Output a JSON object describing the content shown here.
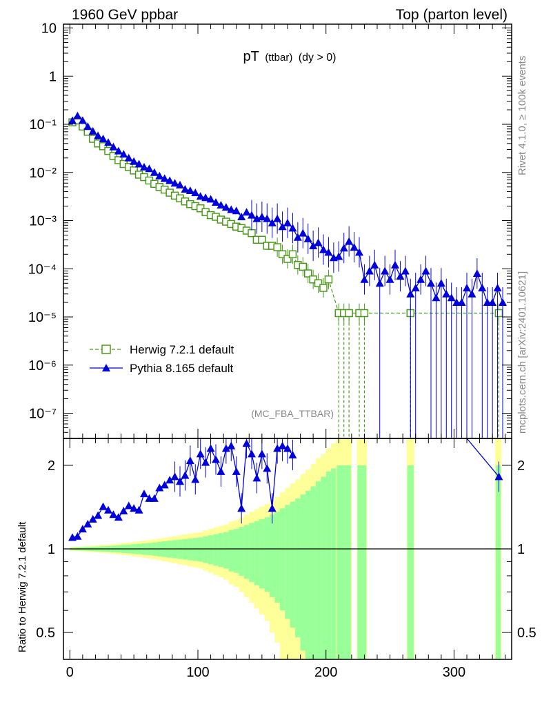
{
  "header": {
    "left": "1960 GeV ppbar",
    "right": "Top (parton level)"
  },
  "side_labels": {
    "rivet": "Rivet 4.1.0, ≥ 100k events",
    "mcplots": "mcplots.cern.ch [arXiv:2401.10621]"
  },
  "colors": {
    "herwig": "#4a9a1a",
    "pythia": "#0000dd",
    "band_inner": "#99ff99",
    "band_outer": "#ffff99",
    "axis": "#000000",
    "analysis_label": "#888888"
  },
  "chart_data": [
    {
      "id": "main",
      "type": "line",
      "title_main": "pT",
      "title_sub": "(ttbar)",
      "title_cut": "(dy > 0)",
      "analysis": "(MC_FBA_TTBAR)",
      "yscale": "log",
      "xlim": [
        -5,
        345
      ],
      "ylim": [
        3e-08,
        12
      ],
      "y_ticks": [
        {
          "value": 10,
          "label": "10"
        },
        {
          "value": 1,
          "label": "1"
        },
        {
          "value": 0.1,
          "label": "10⁻¹"
        },
        {
          "value": 0.01,
          "label": "10⁻²"
        },
        {
          "value": 0.001,
          "label": "10⁻³"
        },
        {
          "value": 0.0001,
          "label": "10⁻⁴"
        },
        {
          "value": 1e-05,
          "label": "10⁻⁵"
        },
        {
          "value": 1e-06,
          "label": "10⁻⁶"
        },
        {
          "value": 1e-07,
          "label": "10⁻⁷"
        }
      ],
      "legend_position": "bottom-left",
      "series": [
        {
          "name": "Herwig 7.2.1 default",
          "marker": "open-square",
          "linestyle": "dashed",
          "x": [
            2,
            6,
            10,
            14,
            18,
            22,
            26,
            30,
            34,
            38,
            42,
            46,
            50,
            54,
            58,
            62,
            66,
            70,
            74,
            78,
            82,
            86,
            90,
            94,
            98,
            102,
            106,
            110,
            114,
            118,
            122,
            126,
            130,
            134,
            138,
            142,
            146,
            150,
            154,
            158,
            162,
            166,
            170,
            174,
            178,
            182,
            186,
            190,
            194,
            198,
            202,
            210,
            214,
            218,
            226,
            230,
            266,
            335
          ],
          "y": [
            0.11,
            0.12,
            0.09,
            0.07,
            0.05,
            0.04,
            0.035,
            0.028,
            0.022,
            0.018,
            0.015,
            0.013,
            0.011,
            0.009,
            0.008,
            0.0068,
            0.0058,
            0.005,
            0.0044,
            0.0038,
            0.0033,
            0.0029,
            0.0025,
            0.0022,
            0.002,
            0.0018,
            0.0015,
            0.0013,
            0.0012,
            0.00105,
            0.00095,
            0.00085,
            0.00075,
            0.0007,
            0.00062,
            0.00055,
            0.0004,
            0.0004,
            0.0003,
            0.0003,
            0.00028,
            0.0002,
            0.00016,
            0.0002,
            0.00012,
            0.00011,
            8e-05,
            6e-05,
            5e-05,
            4e-05,
            6e-05,
            1.2e-05,
            1.2e-05,
            1.2e-05,
            1.2e-05,
            1.2e-05,
            1.2e-05,
            1.2e-05
          ],
          "dashed_to_zero": [
            210,
            214,
            218,
            226,
            230,
            266,
            335
          ]
        },
        {
          "name": "Pythia 8.165 default",
          "marker": "filled-triangle",
          "linestyle": "solid",
          "x": [
            2,
            6,
            10,
            14,
            18,
            22,
            26,
            30,
            34,
            38,
            42,
            46,
            50,
            54,
            58,
            62,
            66,
            70,
            74,
            78,
            82,
            86,
            90,
            94,
            98,
            102,
            106,
            110,
            114,
            118,
            122,
            126,
            130,
            134,
            138,
            142,
            146,
            150,
            154,
            158,
            162,
            166,
            170,
            174,
            178,
            182,
            186,
            190,
            194,
            198,
            202,
            206,
            210,
            214,
            218,
            222,
            226,
            230,
            234,
            238,
            242,
            246,
            250,
            254,
            258,
            262,
            266,
            270,
            274,
            278,
            282,
            286,
            290,
            294,
            298,
            302,
            306,
            310,
            314,
            318,
            322,
            326,
            330,
            334,
            338
          ],
          "y": [
            0.12,
            0.15,
            0.12,
            0.09,
            0.072,
            0.058,
            0.05,
            0.042,
            0.034,
            0.028,
            0.024,
            0.02,
            0.017,
            0.015,
            0.013,
            0.012,
            0.01,
            0.0085,
            0.0075,
            0.0068,
            0.006,
            0.0055,
            0.0045,
            0.0042,
            0.0038,
            0.0032,
            0.003,
            0.0028,
            0.0024,
            0.0021,
            0.0019,
            0.0017,
            0.0016,
            0.0012,
            0.0015,
            0.0013,
            0.0011,
            0.0012,
            0.0011,
            0.0009,
            0.0011,
            0.00075,
            0.0009,
            0.0007,
            0.00045,
            0.00055,
            0.00042,
            0.0003,
            0.00035,
            0.00025,
            0.00022,
            0.00017,
            0.00018,
            0.00027,
            0.00037,
            0.00028,
            0.00022,
            6e-05,
            9e-05,
            0.00012,
            5e-05,
            9e-05,
            6e-05,
            0.00012,
            7e-05,
            9e-05,
            3e-05,
            4e-05,
            6e-05,
            9e-05,
            5e-05,
            2.5e-05,
            5e-05,
            3e-05,
            2.5e-05,
            2e-05,
            2e-05,
            4e-05,
            3e-05,
            8e-05,
            4e-05,
            2e-05,
            2e-05,
            4e-05,
            2e-05
          ]
        }
      ]
    },
    {
      "id": "ratio",
      "type": "line",
      "ylabel": "Ratio to Herwig 7.2.1 default",
      "yscale": "log",
      "xlim": [
        -5,
        345
      ],
      "ylim": [
        0.4,
        2.5
      ],
      "x_ticks": [
        0,
        100,
        200,
        300
      ],
      "y_ticks": [
        {
          "value": 0.5,
          "label": "0.5"
        },
        {
          "value": 1,
          "label": "1"
        },
        {
          "value": 2,
          "label": "2"
        }
      ],
      "reference_line": 1,
      "band": {
        "edges": [
          0,
          4,
          8,
          12,
          16,
          20,
          24,
          28,
          32,
          36,
          40,
          44,
          48,
          52,
          56,
          60,
          64,
          68,
          72,
          76,
          80,
          84,
          88,
          92,
          96,
          100,
          104,
          108,
          112,
          116,
          120,
          124,
          128,
          132,
          136,
          140,
          144,
          148,
          152,
          156,
          160,
          164,
          168,
          172,
          176,
          180,
          184,
          188,
          192,
          196,
          200,
          204,
          208
        ],
        "inner_frac": [
          0.01,
          0.012,
          0.014,
          0.016,
          0.018,
          0.02,
          0.022,
          0.024,
          0.027,
          0.03,
          0.033,
          0.036,
          0.04,
          0.043,
          0.047,
          0.05,
          0.055,
          0.06,
          0.065,
          0.07,
          0.075,
          0.08,
          0.085,
          0.09,
          0.095,
          0.1,
          0.11,
          0.12,
          0.13,
          0.14,
          0.15,
          0.17,
          0.18,
          0.2,
          0.22,
          0.24,
          0.26,
          0.28,
          0.3,
          0.33,
          0.36,
          0.4,
          0.44,
          0.48,
          0.52,
          0.57,
          0.62,
          0.68,
          0.75,
          0.82,
          0.9,
          0.95
        ],
        "outer_frac": [
          0.015,
          0.018,
          0.021,
          0.024,
          0.027,
          0.03,
          0.033,
          0.036,
          0.04,
          0.045,
          0.05,
          0.055,
          0.06,
          0.065,
          0.07,
          0.076,
          0.083,
          0.09,
          0.098,
          0.105,
          0.112,
          0.12,
          0.128,
          0.135,
          0.143,
          0.15,
          0.165,
          0.18,
          0.195,
          0.21,
          0.225,
          0.255,
          0.27,
          0.3,
          0.33,
          0.36,
          0.39,
          0.42,
          0.45,
          0.5,
          0.54,
          0.6,
          0.66,
          0.72,
          0.78,
          0.86,
          0.93,
          1.02,
          1.12,
          1.2,
          1.3,
          1.4
        ],
        "spikes": [
          {
            "x0": 208,
            "x1": 220,
            "inner_top": 2.0,
            "outer_top": 2.5
          },
          {
            "x0": 224,
            "x1": 232,
            "inner_top": 2.0,
            "outer_top": 2.5
          },
          {
            "x0": 263,
            "x1": 269,
            "inner_top": 2.0,
            "outer_top": 2.5
          },
          {
            "x0": 332,
            "x1": 337,
            "inner_top": 2.0,
            "outer_top": 2.5
          }
        ]
      },
      "series": [
        {
          "name": "Pythia 8.165 default",
          "x": [
            2,
            6,
            10,
            14,
            18,
            22,
            26,
            30,
            34,
            38,
            42,
            46,
            50,
            54,
            58,
            62,
            66,
            70,
            74,
            78,
            82,
            86,
            90,
            94,
            98,
            102,
            106,
            110,
            114,
            118,
            122,
            126,
            130,
            134,
            138,
            142,
            146,
            150,
            154,
            158,
            162,
            166,
            170,
            174,
            335
          ],
          "y": [
            1.1,
            1.11,
            1.18,
            1.23,
            1.28,
            1.32,
            1.42,
            1.38,
            1.33,
            1.3,
            1.37,
            1.43,
            1.4,
            1.38,
            1.58,
            1.52,
            1.52,
            1.66,
            1.7,
            1.77,
            1.82,
            1.75,
            1.84,
            2.08,
            1.78,
            2.2,
            2.05,
            2.3,
            2.1,
            1.9,
            2.3,
            2.35,
            1.9,
            1.4,
            2.4,
            2.2,
            1.8,
            2.2,
            1.95,
            1.4,
            2.3,
            2.35,
            2.3,
            2.18,
            1.82
          ]
        }
      ]
    }
  ]
}
